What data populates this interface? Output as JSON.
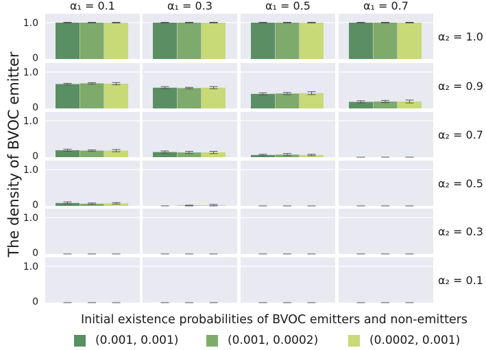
{
  "chart_data": {
    "type": "bar",
    "ylabel": "The density of BVOC emitter",
    "yticks": [
      "0",
      "1.0"
    ],
    "ylim": [
      0,
      1.18
    ],
    "col_labels": [
      "α₁ = 0.1",
      "α₁ = 0.3",
      "α₁ = 0.5",
      "α₁ = 0.7"
    ],
    "row_labels": [
      "α₂ = 1.0",
      "α₂ = 0.9",
      "α₂ = 0.7",
      "α₂ = 0.5",
      "α₂ = 0.3",
      "α₂ = 0.1"
    ],
    "legend_title": "Initial existence probabilities of BVOC emitters and non-emitters",
    "series": [
      {
        "name": "(0.001, 0.001)",
        "color": "#5a8f63"
      },
      {
        "name": "(0.001, 0.0002)",
        "color": "#7eaa6c"
      },
      {
        "name": "(0.0002, 0.001)",
        "color": "#c8d977"
      }
    ],
    "values": [
      [
        [
          1.0,
          1.0,
          1.0
        ],
        [
          1.0,
          1.0,
          1.0
        ],
        [
          1.0,
          1.0,
          1.0
        ],
        [
          1.0,
          1.0,
          1.0
        ]
      ],
      [
        [
          0.67,
          0.69,
          0.68
        ],
        [
          0.57,
          0.56,
          0.57
        ],
        [
          0.4,
          0.41,
          0.42
        ],
        [
          0.18,
          0.19,
          0.19
        ]
      ],
      [
        [
          0.19,
          0.18,
          0.18
        ],
        [
          0.14,
          0.13,
          0.13
        ],
        [
          0.06,
          0.07,
          0.06
        ],
        [
          0.0,
          0.0,
          0.0
        ]
      ],
      [
        [
          0.08,
          0.06,
          0.07
        ],
        [
          0.0,
          0.01,
          0.02
        ],
        [
          0.0,
          0.0,
          0.0
        ],
        [
          0.0,
          0.0,
          0.0
        ]
      ],
      [
        [
          0.0,
          0.0,
          0.0
        ],
        [
          0.0,
          0.0,
          0.0
        ],
        [
          0.0,
          0.0,
          0.0
        ],
        [
          0.0,
          0.0,
          0.0
        ]
      ],
      [
        [
          0.0,
          0.0,
          0.0
        ],
        [
          0.0,
          0.0,
          0.0
        ],
        [
          0.0,
          0.0,
          0.0
        ],
        [
          0.0,
          0.0,
          0.0
        ]
      ]
    ],
    "errors": [
      [
        [
          0.01,
          0.01,
          0.01
        ],
        [
          0.01,
          0.01,
          0.01
        ],
        [
          0.01,
          0.01,
          0.01
        ],
        [
          0.01,
          0.01,
          0.01
        ]
      ],
      [
        [
          0.02,
          0.02,
          0.03
        ],
        [
          0.03,
          0.02,
          0.03
        ],
        [
          0.03,
          0.03,
          0.04
        ],
        [
          0.03,
          0.03,
          0.04
        ]
      ],
      [
        [
          0.03,
          0.02,
          0.03
        ],
        [
          0.03,
          0.03,
          0.03
        ],
        [
          0.02,
          0.03,
          0.02
        ],
        [
          0.0,
          0.0,
          0.0
        ]
      ],
      [
        [
          0.03,
          0.02,
          0.02
        ],
        [
          0.0,
          0.01,
          0.02
        ],
        [
          0.0,
          0.0,
          0.0
        ],
        [
          0.0,
          0.0,
          0.0
        ]
      ],
      [
        [
          0.0,
          0.0,
          0.0
        ],
        [
          0.0,
          0.0,
          0.0
        ],
        [
          0.0,
          0.0,
          0.0
        ],
        [
          0.0,
          0.0,
          0.0
        ]
      ],
      [
        [
          0.0,
          0.0,
          0.0
        ],
        [
          0.0,
          0.0,
          0.0
        ],
        [
          0.0,
          0.0,
          0.0
        ],
        [
          0.0,
          0.0,
          0.0
        ]
      ]
    ]
  }
}
